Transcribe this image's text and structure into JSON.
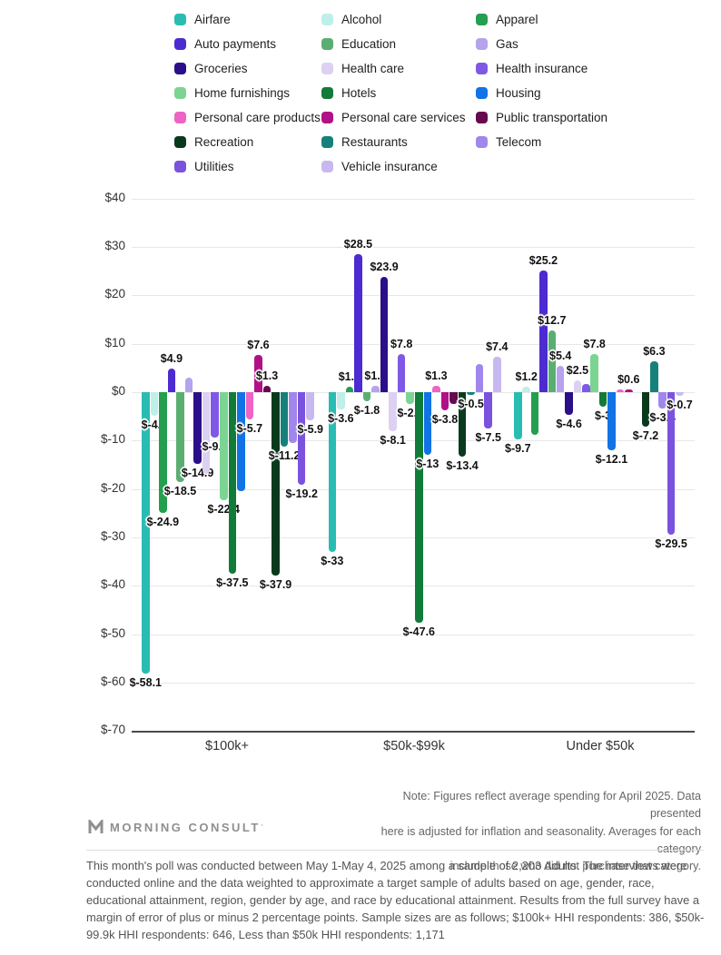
{
  "legend": {
    "items": [
      {
        "label": "Airfare",
        "color": "#29BCB2"
      },
      {
        "label": "Alcohol",
        "color": "#BEEFE9"
      },
      {
        "label": "Apparel",
        "color": "#249E4F"
      },
      {
        "label": "Auto payments",
        "color": "#4C2BD1"
      },
      {
        "label": "Education",
        "color": "#5BAE72"
      },
      {
        "label": "Gas",
        "color": "#B5A3EE"
      },
      {
        "label": "Groceries",
        "color": "#2B0F89"
      },
      {
        "label": "Health care",
        "color": "#DCD1F2"
      },
      {
        "label": "Health insurance",
        "color": "#7F59E5"
      },
      {
        "label": "Home furnishings",
        "color": "#7CD492"
      },
      {
        "label": "Hotels",
        "color": "#117B39"
      },
      {
        "label": "Housing",
        "color": "#1273E6"
      },
      {
        "label": "Personal care products",
        "color": "#EE63C4"
      },
      {
        "label": "Personal care services",
        "color": "#B01187"
      },
      {
        "label": "Public transportation",
        "color": "#660A4E"
      },
      {
        "label": "Recreation",
        "color": "#0A3A1C"
      },
      {
        "label": "Restaurants",
        "color": "#16807A"
      },
      {
        "label": "Telecom",
        "color": "#A087EB"
      },
      {
        "label": "Utilities",
        "color": "#7B52DE"
      },
      {
        "label": "Vehicle insurance",
        "color": "#C7B9F0"
      }
    ]
  },
  "chart_data": {
    "type": "bar",
    "title": "",
    "ylabel": "",
    "xlabel": "",
    "ylim": [
      -70,
      40
    ],
    "grid": true,
    "yticks": [
      "$40",
      "$30",
      "$20",
      "$10",
      "$0",
      "$-10",
      "$-20",
      "$-30",
      "$-40",
      "$-50",
      "$-60",
      "$-70"
    ],
    "groups": [
      "$100k+",
      "$50k-$99k",
      "Under $50k"
    ],
    "categories": [
      "Airfare",
      "Alcohol",
      "Apparel",
      "Auto payments",
      "Education",
      "Gas",
      "Groceries",
      "Health care",
      "Health insurance",
      "Home furnishings",
      "Hotels",
      "Housing",
      "Personal care products",
      "Personal care services",
      "Public transportation",
      "Recreation",
      "Restaurants",
      "Telecom",
      "Utilities",
      "Vehicle insurance"
    ],
    "series": [
      {
        "name": "$100k+",
        "values": [
          -58.1,
          -4.9,
          -24.9,
          4.9,
          -18.5,
          3.0,
          -14.9,
          -16.8,
          -9.3,
          -22.4,
          -37.5,
          -20.5,
          -5.7,
          7.6,
          1.3,
          -37.9,
          -11.2,
          -10.5,
          -19.2,
          -5.9
        ],
        "labels": [
          "$-58.1",
          "$-4.9",
          "$-24.9",
          "$4.9",
          "$-18.5",
          null,
          "$-14.9",
          null,
          "$-9.3",
          "$-22.4",
          "$-37.5",
          null,
          "$-5.7",
          "$7.6",
          "$1.3",
          "$-37.9",
          "$-11.2",
          null,
          "$-19.2",
          "$-5.9"
        ]
      },
      {
        "name": "$50k-$99k",
        "values": [
          -33,
          -3.6,
          1.2,
          28.5,
          -1.8,
          1.4,
          23.9,
          -8.1,
          7.8,
          -2.4,
          -47.6,
          -13,
          1.3,
          -3.8,
          -2.5,
          -13.4,
          -0.5,
          5.8,
          -7.5,
          7.4
        ],
        "labels": [
          "$-33",
          "$-3.6",
          "$1.2",
          "$28.5",
          "$-1.8",
          "$1.4",
          "$23.9",
          "$-8.1",
          "$7.8",
          "$-2.4",
          "$-47.6",
          "$-13",
          "$1.3",
          "$-3.8",
          null,
          "$-13.4",
          "$-0.5",
          null,
          "$-7.5",
          "$7.4"
        ]
      },
      {
        "name": "Under $50k",
        "values": [
          -9.7,
          1.2,
          -8.8,
          25.2,
          12.7,
          5.4,
          -4.6,
          2.5,
          1.6,
          7.8,
          -3,
          -12.1,
          0.5,
          0.6,
          0,
          -7.2,
          6.3,
          -3.4,
          -29.5,
          -0.7
        ],
        "labels": [
          "$-9.7",
          "$1.2",
          null,
          "$25.2",
          "$12.7",
          "$5.4",
          "$-4.6",
          "$2.5",
          null,
          "$7.8",
          "$-3",
          "$-12.1",
          null,
          "$0.6",
          null,
          "$-7.2",
          "$6.3",
          "$-3.4",
          "$-29.5",
          "$-0.7"
        ]
      }
    ]
  },
  "note": {
    "line1": "Note: Figures reflect average spending for April 2025. Data presented",
    "line2": "here is adjusted for inflation and seasonality. Averages for each category",
    "line3": "include those who did not purchase that category."
  },
  "branding": {
    "logo_text": "MORNING CONSULT"
  },
  "footer": {
    "text": "This month's poll was conducted between May 1-May 4, 2025 among a sample of 2,203 Adults. The interviews were conducted online and the data weighted to approximate a target sample of adults based on age, gender, race, educational attainment, region, gender by age, and race by educational attainment. Results from the full survey have a margin of error of plus or minus 2 percentage points. Sample sizes are as follows; $100k+ HHI respondents: 386, $50k-99.9k HHI respondents: 646, Less than $50k HHI respondents: 1,171"
  }
}
